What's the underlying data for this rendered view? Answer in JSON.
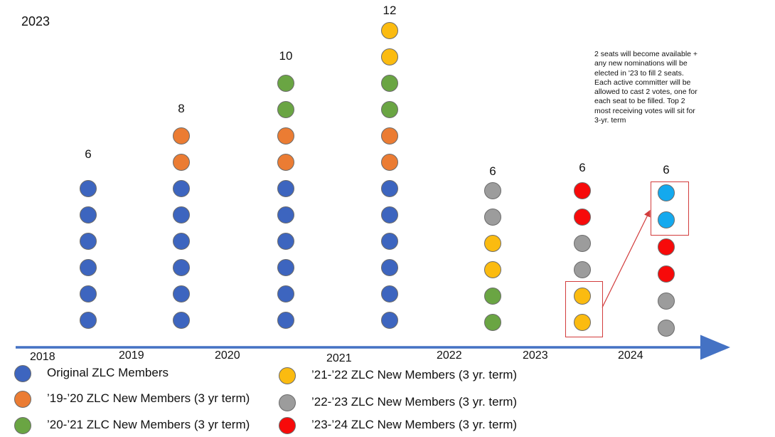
{
  "title": "2023",
  "colors": {
    "original": "#3d65bf",
    "y1920": "#eb7c33",
    "y2021": "#6aa543",
    "y2122": "#fbbb10",
    "y2223": "#9c9c9c",
    "y2324": "#f70a0a",
    "new_seat": "#14a9ee",
    "axis": "#4472c4",
    "highlight": "#d23c3c"
  },
  "columns": [
    {
      "count": "6",
      "dots": [
        "original",
        "original",
        "original",
        "original",
        "original",
        "original"
      ]
    },
    {
      "count": "8",
      "dots": [
        "y1920",
        "y1920",
        "original",
        "original",
        "original",
        "original",
        "original",
        "original"
      ]
    },
    {
      "count": "10",
      "dots": [
        "y2021",
        "y2021",
        "y1920",
        "y1920",
        "original",
        "original",
        "original",
        "original",
        "original",
        "original"
      ]
    },
    {
      "count": "12",
      "dots": [
        "y2122",
        "y2122",
        "y2021",
        "y2021",
        "y1920",
        "y1920",
        "original",
        "original",
        "original",
        "original",
        "original",
        "original"
      ]
    },
    {
      "count": "6",
      "dots": [
        "y2223",
        "y2223",
        "y2122",
        "y2122",
        "y2021",
        "y2021"
      ]
    },
    {
      "count": "6",
      "dots": [
        "y2324",
        "y2324",
        "y2223",
        "y2223",
        "y2122",
        "y2122"
      ]
    },
    {
      "count": "6",
      "dots": [
        "new_seat",
        "new_seat",
        "y2324",
        "y2324",
        "y2223",
        "y2223"
      ]
    }
  ],
  "years": [
    "2018",
    "2019",
    "2020",
    "2021",
    "2022",
    "2023",
    "2024"
  ],
  "note": "2 seats will become available + any new nominations will be elected in '23 to fill 2 seats. Each active committer will be allowed to cast 2 votes, one for each seat to be filled. Top 2 most receiving votes will sit for 3-yr. term",
  "legend": [
    {
      "color_key": "original",
      "label": "Original ZLC Members"
    },
    {
      "color_key": "y1920",
      "label": "’19-’20 ZLC New Members (3 yr term)"
    },
    {
      "color_key": "y2021",
      "label": "’20-’21 ZLC New Members (3 yr term)"
    },
    {
      "color_key": "y2122",
      "label": "’21-’22 ZLC New Members (3 yr. term)"
    },
    {
      "color_key": "y2223",
      "label": "’22-’23 ZLC New Members (3 yr. term)"
    },
    {
      "color_key": "y2324",
      "label": "’23-’24 ZLC New Members (3 yr. term)"
    }
  ]
}
